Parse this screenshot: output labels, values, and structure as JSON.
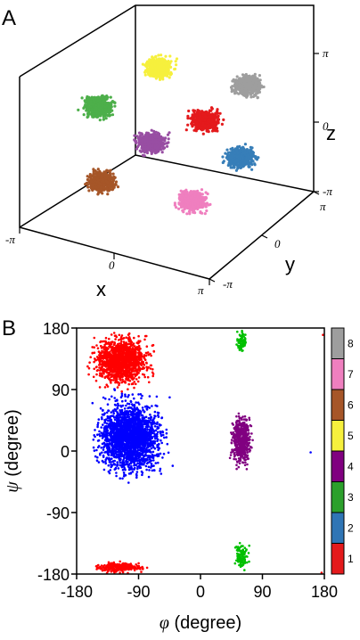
{
  "figure": {
    "panel_a_label": "A",
    "panel_b_label": "B"
  },
  "chart_data": [
    {
      "panel": "A",
      "type": "scatter",
      "dimensions": 3,
      "axis_labels": {
        "x": "x",
        "y": "y",
        "z": "z"
      },
      "x_ticks": [
        "-π",
        "0",
        "π"
      ],
      "y_ticks": [
        "-π",
        "0",
        "π"
      ],
      "z_ticks": [
        "-π",
        "0",
        "π"
      ],
      "xlim": [
        -3.1416,
        3.1416
      ],
      "ylim": [
        -3.1416,
        3.1416
      ],
      "zlim": [
        -3.1416,
        3.1416
      ],
      "clusters": [
        {
          "state": 1,
          "color": "#e41a1c",
          "x": 1.57,
          "y": 1.57,
          "z": 1.57
        },
        {
          "state": 2,
          "color": "#377eb8",
          "x": 1.57,
          "y": -1.57,
          "z": -1.57
        },
        {
          "state": 3,
          "color": "#4daf4a",
          "x": -1.57,
          "y": 1.57,
          "z": -1.57
        },
        {
          "state": 4,
          "color": "#984ea3",
          "x": -1.57,
          "y": 1.57,
          "z": 1.57
        },
        {
          "state": 5,
          "color": "#f6f03d",
          "x": -1.57,
          "y": -1.57,
          "z": 1.57
        },
        {
          "state": 6,
          "color": "#a65628",
          "x": -1.57,
          "y": -1.57,
          "z": -1.57
        },
        {
          "state": 7,
          "color": "#ef7fbf",
          "x": 1.57,
          "y": -1.57,
          "z": -1.57
        },
        {
          "state": 8,
          "color": "#9e9e9e",
          "x": 1.57,
          "y": 1.57,
          "z": 1.57
        }
      ]
    },
    {
      "panel": "B",
      "type": "scatter",
      "xlabel_symbol": "φ",
      "xlabel_unit": " (degree)",
      "ylabel_symbol": "ψ",
      "ylabel_unit": " (degree)",
      "xlim": [
        -180,
        180
      ],
      "ylim": [
        -180,
        180
      ],
      "x_ticks": [
        "-180",
        "-90",
        "0",
        "90",
        "180"
      ],
      "y_ticks": [
        "180",
        "90",
        "0",
        "-90",
        "-180"
      ],
      "clusters": [
        {
          "color": "#ff0000",
          "x_range": [
            -170,
            -60
          ],
          "y_range": [
            85,
            180
          ]
        },
        {
          "color": "#ff0000",
          "x_range": [
            -165,
            -70
          ],
          "y_range": [
            -180,
            -160
          ]
        },
        {
          "color": "#0000ff",
          "x_range": [
            -170,
            -35
          ],
          "y_range": [
            -55,
            95
          ]
        },
        {
          "color": "#800080",
          "x_range": [
            40,
            80
          ],
          "y_range": [
            -35,
            70
          ]
        },
        {
          "color": "#00c000",
          "x_range": [
            50,
            70
          ],
          "y_range": [
            140,
            180
          ]
        },
        {
          "color": "#00c000",
          "x_range": [
            45,
            75
          ],
          "y_range": [
            -180,
            -130
          ]
        }
      ],
      "colorbar": {
        "ticks": [
          "8",
          "7",
          "6",
          "5",
          "4",
          "3",
          "2",
          "1"
        ],
        "colors": [
          "#9e9e9e",
          "#ef7fbf",
          "#a65628",
          "#f6f03d",
          "#800080",
          "#2ca02c",
          "#2f75b5",
          "#e41a1c"
        ]
      }
    }
  ]
}
